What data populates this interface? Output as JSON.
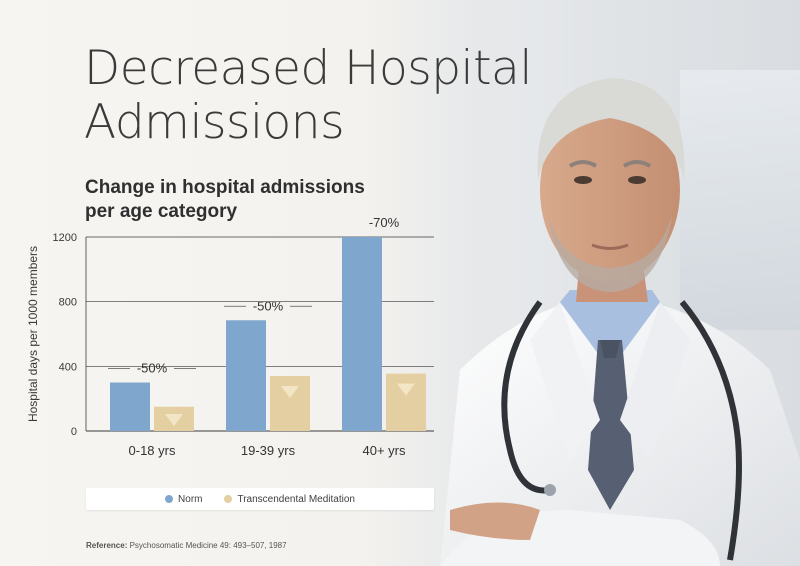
{
  "title_line1": "Decreased Hospital",
  "title_line2": "Admissions",
  "subtitle_line1": "Change in hospital admissions",
  "subtitle_line2": "per age category",
  "reference_label": "Reference:",
  "reference_text": "Psychosomatic Medicine 49: 493–507, 1987",
  "colors": {
    "norm": "#7fa6cc",
    "tm": "#e3cfa2",
    "grid": "#3a3a3a"
  },
  "chart_data": {
    "type": "bar",
    "ylabel": "Hospital days per 1000 members",
    "xlabel": "",
    "ylim": [
      0,
      1200
    ],
    "yticks": [
      0,
      400,
      800,
      1200
    ],
    "categories": [
      "0-18 yrs",
      "19-39 yrs",
      "40+ yrs"
    ],
    "series": [
      {
        "name": "Norm",
        "values": [
          300,
          685,
          1200
        ]
      },
      {
        "name": "Transcendental Meditation",
        "values": [
          150,
          340,
          355
        ]
      }
    ],
    "annotations": [
      "-50%",
      "-50%",
      "-70%"
    ],
    "legend": "bottom",
    "grid": true
  }
}
